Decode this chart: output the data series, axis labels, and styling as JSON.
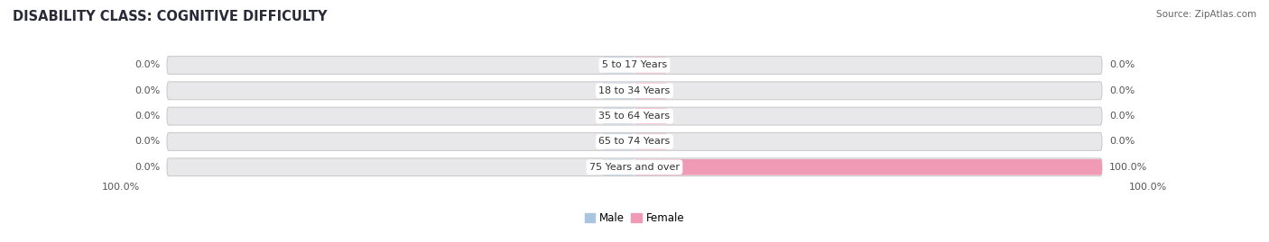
{
  "title": "DISABILITY CLASS: COGNITIVE DIFFICULTY",
  "source": "Source: ZipAtlas.com",
  "categories": [
    "5 to 17 Years",
    "18 to 34 Years",
    "35 to 64 Years",
    "65 to 74 Years",
    "75 Years and over"
  ],
  "male_values": [
    0.0,
    0.0,
    0.0,
    0.0,
    0.0
  ],
  "female_values": [
    0.0,
    0.0,
    0.0,
    0.0,
    100.0
  ],
  "male_color": "#a8c4de",
  "female_color": "#f09ab5",
  "row_bg_color": "#e8e8eb",
  "row_bg_outer_color": "#d8d8dc",
  "max_value": 100.0,
  "stub_size": 7.0,
  "title_fontsize": 10.5,
  "label_fontsize": 8.0,
  "source_fontsize": 7.5,
  "legend_fontsize": 8.5
}
